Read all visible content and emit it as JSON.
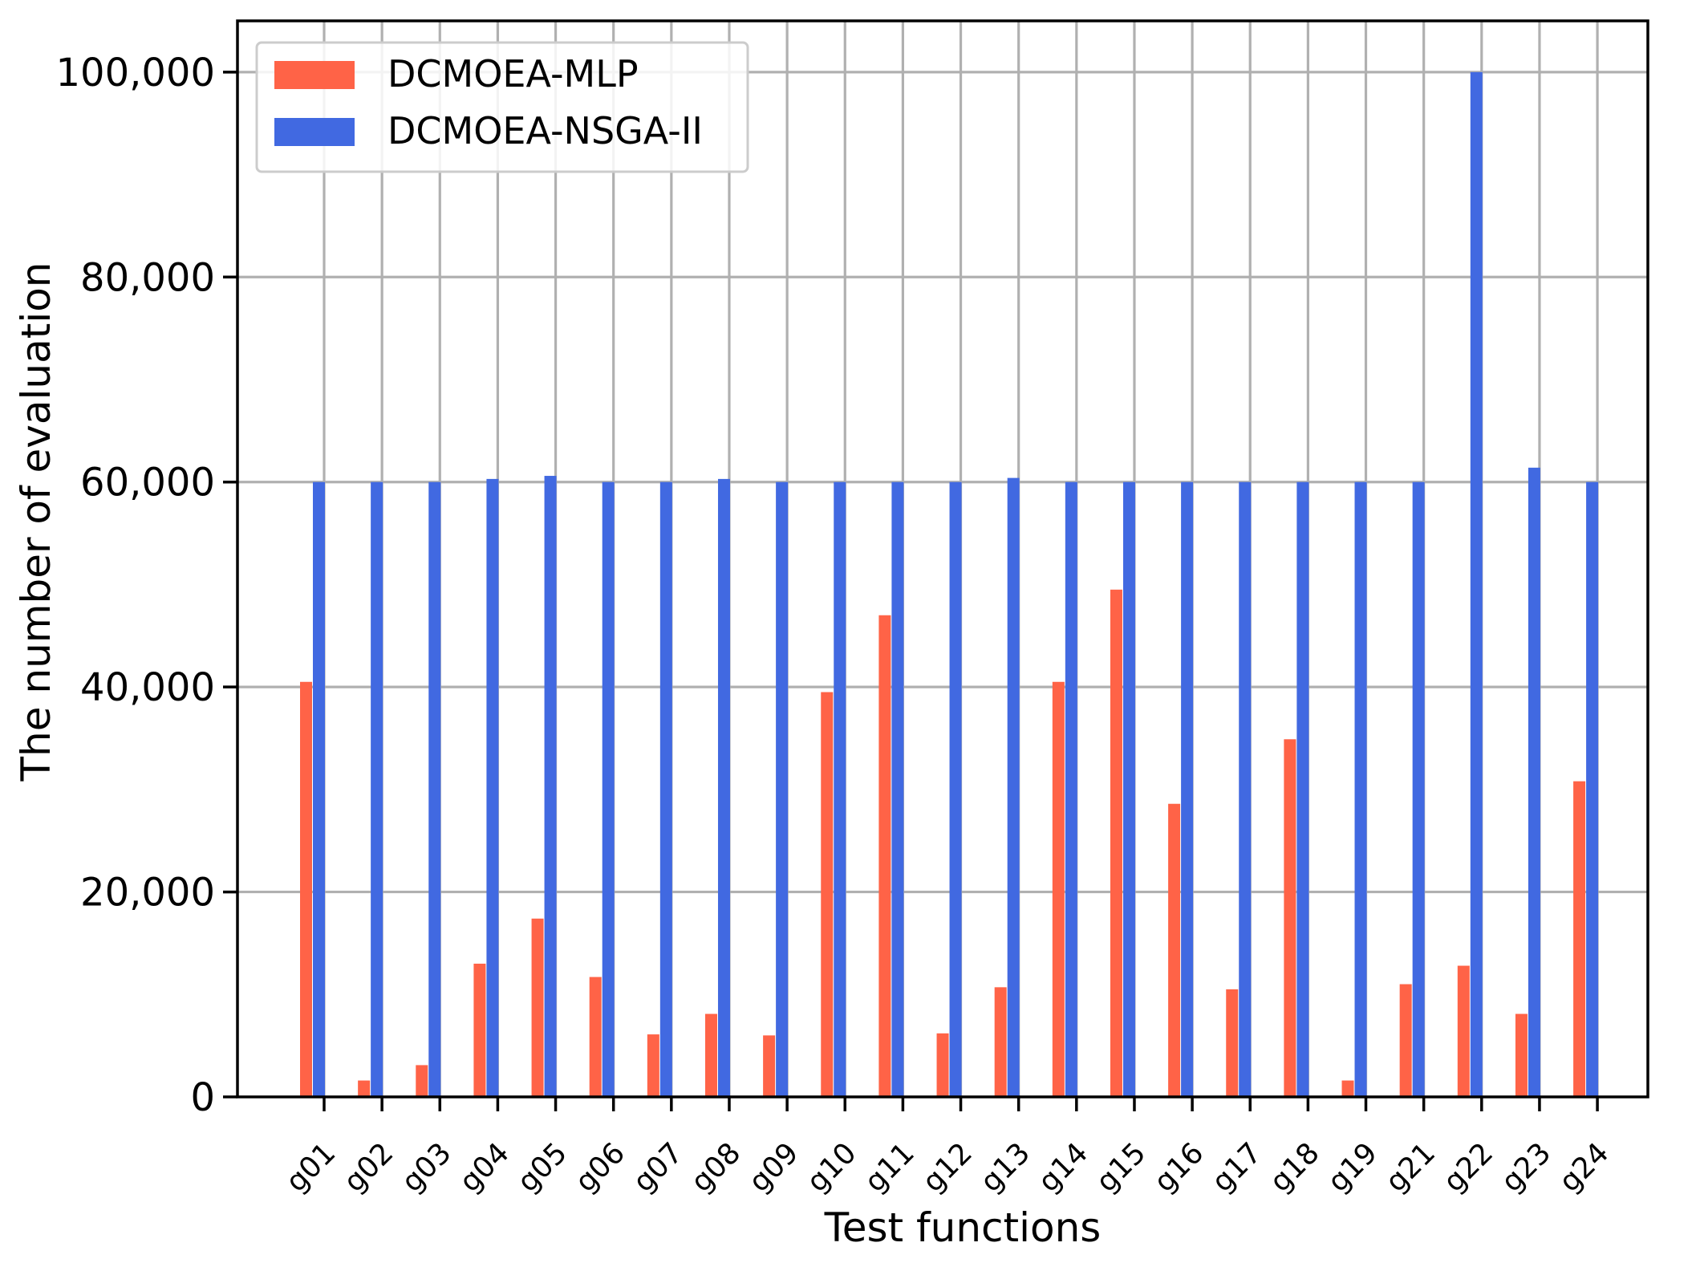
{
  "chart_data": {
    "type": "bar",
    "xlabel": "Test functions",
    "ylabel": "The number of evaluation",
    "ylim": [
      0,
      105000
    ],
    "yticks": [
      0,
      20000,
      40000,
      60000,
      80000,
      100000
    ],
    "ytick_labels": [
      "0",
      "20,000",
      "40,000",
      "60,000",
      "80,000",
      "100,000"
    ],
    "grid": true,
    "legend_position": "top-left",
    "categories": [
      "g01",
      "g02",
      "g03",
      "g04",
      "g05",
      "g06",
      "g07",
      "g08",
      "g09",
      "g10",
      "g11",
      "g12",
      "g13",
      "g14",
      "g15",
      "g16",
      "g17",
      "g18",
      "g19",
      "g21",
      "g22",
      "g23",
      "g24"
    ],
    "series": [
      {
        "name": "DCMOEA-MLP",
        "color": "#ff6347",
        "values": [
          40500,
          1600,
          3100,
          13000,
          17400,
          11700,
          6100,
          8100,
          6000,
          39500,
          47000,
          6200,
          10700,
          40500,
          49500,
          28600,
          10500,
          34900,
          1600,
          11000,
          12800,
          8100,
          30800
        ]
      },
      {
        "name": "DCMOEA-NSGA-II",
        "color": "#4169e1",
        "values": [
          60000,
          60000,
          60000,
          60300,
          60600,
          60000,
          60000,
          60300,
          60000,
          60000,
          60000,
          60000,
          60400,
          60000,
          60000,
          60000,
          60000,
          60000,
          60000,
          60000,
          100000,
          61400,
          60000
        ]
      }
    ]
  }
}
